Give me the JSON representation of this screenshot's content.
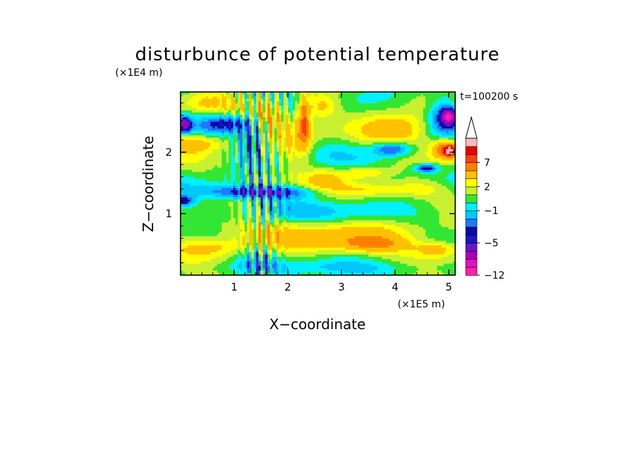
{
  "chart_data": {
    "type": "heatmap",
    "title": "disturbunce of potential temperature",
    "xlabel": "X−coordinate",
    "ylabel": "Z−coordinate",
    "x_unit": "(×1E5 m)",
    "y_unit": "(×1E4 m)",
    "time_label": "t=100200 s",
    "x_ticks": [
      1,
      2,
      3,
      4,
      5
    ],
    "x_tick_labels": [
      "1",
      "2",
      "3",
      "4",
      "5"
    ],
    "y_ticks": [
      1,
      2
    ],
    "y_tick_labels": [
      "1",
      "2"
    ],
    "xlim": [
      0,
      5.12
    ],
    "ylim": [
      0,
      2.98
    ],
    "grid": false,
    "colorbar": {
      "levels": [
        -12,
        -10,
        -8,
        -6,
        -5,
        -4,
        -3,
        -2,
        -1,
        0,
        1,
        2,
        3,
        5,
        7,
        9,
        11
      ],
      "tick_values": [
        -12,
        -5,
        -1,
        2,
        7
      ],
      "tick_labels": [
        "−12",
        "−5",
        "−1",
        "2",
        "7"
      ],
      "colors": [
        "#ff20a8",
        "#e010c0",
        "#a800b8",
        "#6818c8",
        "#1818c0",
        "#0a0aa8",
        "#1e78ff",
        "#00c8ff",
        "#00f0ff",
        "#34e634",
        "#c8f030",
        "#ffff00",
        "#ffc000",
        "#ff8000",
        "#f84010",
        "#e80000",
        "#ffb8b8"
      ],
      "extend": "max"
    },
    "features": [
      {
        "x": 0.08,
        "z": 2.45,
        "rx": 0.12,
        "rz": 0.13,
        "value": -6
      },
      {
        "x": 0.9,
        "z": 2.47,
        "rx": 0.48,
        "rz": 0.14,
        "value": -4
      },
      {
        "x": 1.3,
        "z": 2.28,
        "rx": 0.22,
        "rz": 0.5,
        "value": -3
      },
      {
        "x": 1.55,
        "z": 2.65,
        "rx": 0.45,
        "rz": 0.25,
        "value": 4
      },
      {
        "x": 0.55,
        "z": 2.8,
        "rx": 0.45,
        "rz": 0.17,
        "value": 2
      },
      {
        "x": 2.6,
        "z": 2.75,
        "rx": 0.35,
        "rz": 0.2,
        "value": 4
      },
      {
        "x": 2.1,
        "z": 2.1,
        "rx": 0.4,
        "rz": 0.35,
        "value": 2.5
      },
      {
        "x": 4.12,
        "z": 2.38,
        "rx": 0.72,
        "rz": 0.3,
        "value": 4
      },
      {
        "x": 3.45,
        "z": 1.67,
        "rx": 0.42,
        "rz": 0.1,
        "value": 3
      },
      {
        "x": 4.38,
        "z": 1.4,
        "rx": 0.7,
        "rz": 0.15,
        "value": 2.5
      },
      {
        "x": 3.4,
        "z": 1.38,
        "rx": 0.55,
        "rz": 0.12,
        "value": 2
      },
      {
        "x": 3.95,
        "z": 2.05,
        "rx": 0.38,
        "rz": 0.12,
        "value": -5
      },
      {
        "x": 4.58,
        "z": 1.74,
        "rx": 0.22,
        "rz": 0.07,
        "value": -5
      },
      {
        "x": 4.92,
        "z": 2.6,
        "rx": 0.3,
        "rz": 0.3,
        "value": -5
      },
      {
        "x": 5.0,
        "z": 2.58,
        "rx": 0.12,
        "rz": 0.12,
        "value": -8
      },
      {
        "x": 4.95,
        "z": 2.05,
        "rx": 0.26,
        "rz": 0.16,
        "value": 6
      },
      {
        "x": 5.03,
        "z": 2.02,
        "rx": 0.12,
        "rz": 0.08,
        "value": 8
      },
      {
        "x": 0.25,
        "z": 2.15,
        "rx": 0.6,
        "rz": 0.15,
        "value": 4
      },
      {
        "x": 1.5,
        "z": 1.35,
        "rx": 1.0,
        "rz": 0.1,
        "value": -5
      },
      {
        "x": 0.05,
        "z": 1.2,
        "rx": 0.2,
        "rz": 0.08,
        "value": -4
      },
      {
        "x": 2.8,
        "z": 0.6,
        "rx": 2.2,
        "rz": 0.3,
        "value": 2.3
      },
      {
        "x": 3.6,
        "z": 0.5,
        "rx": 0.6,
        "rz": 0.12,
        "value": 3.2
      },
      {
        "x": 0.5,
        "z": 0.45,
        "rx": 0.7,
        "rz": 0.15,
        "value": 3
      },
      {
        "x": 4.8,
        "z": 0.42,
        "rx": 0.4,
        "rz": 0.12,
        "value": 3.3
      },
      {
        "x": 2.3,
        "z": 2.5,
        "rx": 0.1,
        "rz": 0.4,
        "value": 6
      },
      {
        "x": 1.45,
        "z": 0.25,
        "rx": 0.4,
        "rz": 0.2,
        "value": -2
      },
      {
        "x": 2.7,
        "z": 1.55,
        "rx": 0.35,
        "rz": 0.2,
        "value": 2
      },
      {
        "x": 3.0,
        "z": 2.05,
        "rx": 0.35,
        "rz": 0.12,
        "value": 0
      }
    ]
  }
}
